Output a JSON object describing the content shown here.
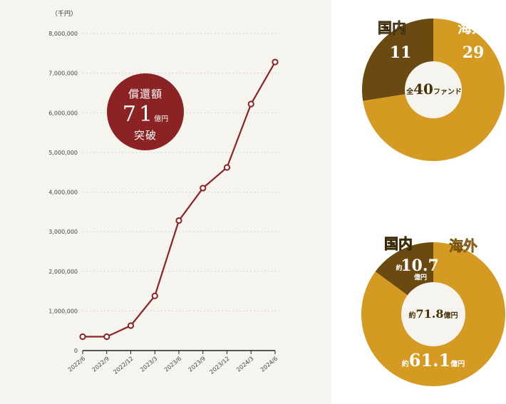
{
  "chart_data": [
    {
      "type": "line",
      "title": "",
      "unit_label": "（千円）",
      "xlabel": "",
      "ylabel": "",
      "x": [
        "2022/6",
        "2022/9",
        "2022/12",
        "2023/3",
        "2023/6",
        "2023/9",
        "2023/12",
        "2024/3",
        "2024/6"
      ],
      "values": [
        350000,
        350000,
        630000,
        1380000,
        3280000,
        4100000,
        4620000,
        6220000,
        7280000
      ],
      "ylim": [
        0,
        8000000
      ],
      "yticks": [
        "0",
        "1,000,000",
        "2,000,000",
        "3,000,000",
        "4,000,000",
        "5,000,000",
        "6,000,000",
        "7,000,000",
        "8,000,000"
      ],
      "grid": true,
      "line_color": "#8b2324",
      "annotation": {
        "line1": "償還額",
        "number": "71",
        "unit": "億円",
        "line3": "突破"
      }
    },
    {
      "type": "pie",
      "slices": [
        {
          "label": "国内",
          "value": 11,
          "value_label": "11",
          "color": "#6a4a10"
        },
        {
          "label": "海外",
          "value": 29,
          "value_label": "29",
          "color": "#d49a22"
        }
      ],
      "center": {
        "prefix": "全",
        "number": "40",
        "suffix": "ファンド"
      }
    },
    {
      "type": "pie",
      "slices": [
        {
          "label": "国内",
          "value": 10.7,
          "prefix": "約",
          "value_label": "10.7",
          "unit": "億円",
          "color": "#6a4a10"
        },
        {
          "label": "海外",
          "value": 61.1,
          "prefix": "約",
          "value_label": "61.1",
          "unit": "億円",
          "color": "#d49a22"
        }
      ],
      "center": {
        "prefix": "約",
        "number": "71.8",
        "suffix": "億円"
      }
    }
  ]
}
